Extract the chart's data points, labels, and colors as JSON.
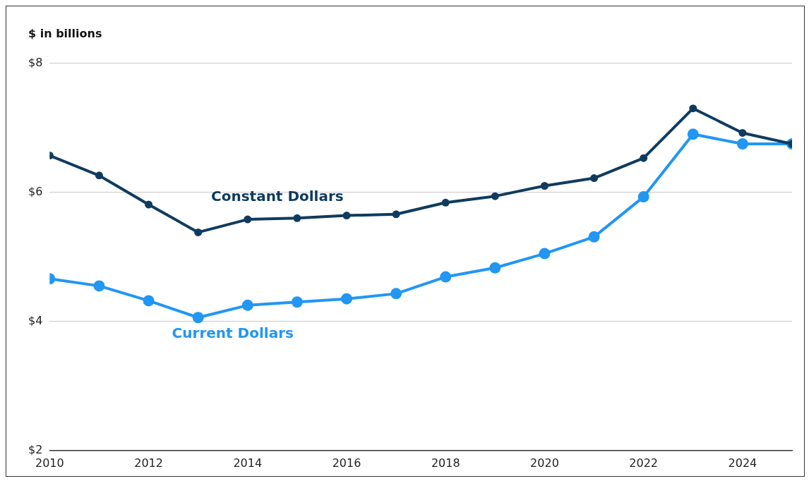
{
  "chart_data": {
    "type": "line",
    "ylabel": "$ in billions",
    "x": [
      2010,
      2011,
      2012,
      2013,
      2014,
      2015,
      2016,
      2017,
      2018,
      2019,
      2020,
      2021,
      2022,
      2023,
      2024,
      2025
    ],
    "series": [
      {
        "name": "Constant Dollars",
        "color": "#0f3b5f",
        "values": [
          6.57,
          6.26,
          5.81,
          5.38,
          5.58,
          5.6,
          5.64,
          5.66,
          5.84,
          5.94,
          6.1,
          6.22,
          6.53,
          7.3,
          6.92,
          6.75
        ]
      },
      {
        "name": "Current Dollars",
        "color": "#2196f3",
        "values": [
          4.66,
          4.55,
          4.32,
          4.06,
          4.25,
          4.3,
          4.35,
          4.43,
          4.69,
          4.83,
          5.05,
          5.31,
          5.93,
          6.9,
          6.75,
          6.75
        ]
      }
    ],
    "xlim": [
      2010,
      2025
    ],
    "xticks": [
      2010,
      2012,
      2014,
      2016,
      2018,
      2020,
      2022,
      2024
    ],
    "ylim": [
      2,
      8
    ],
    "yticks": [
      {
        "value": 2,
        "label": "$2"
      },
      {
        "value": 4,
        "label": "$4"
      },
      {
        "value": 6,
        "label": "$6"
      },
      {
        "value": 8,
        "label": "$8"
      }
    ],
    "grid": "y",
    "legend": false,
    "marker": "circle",
    "line_style": "solid"
  }
}
